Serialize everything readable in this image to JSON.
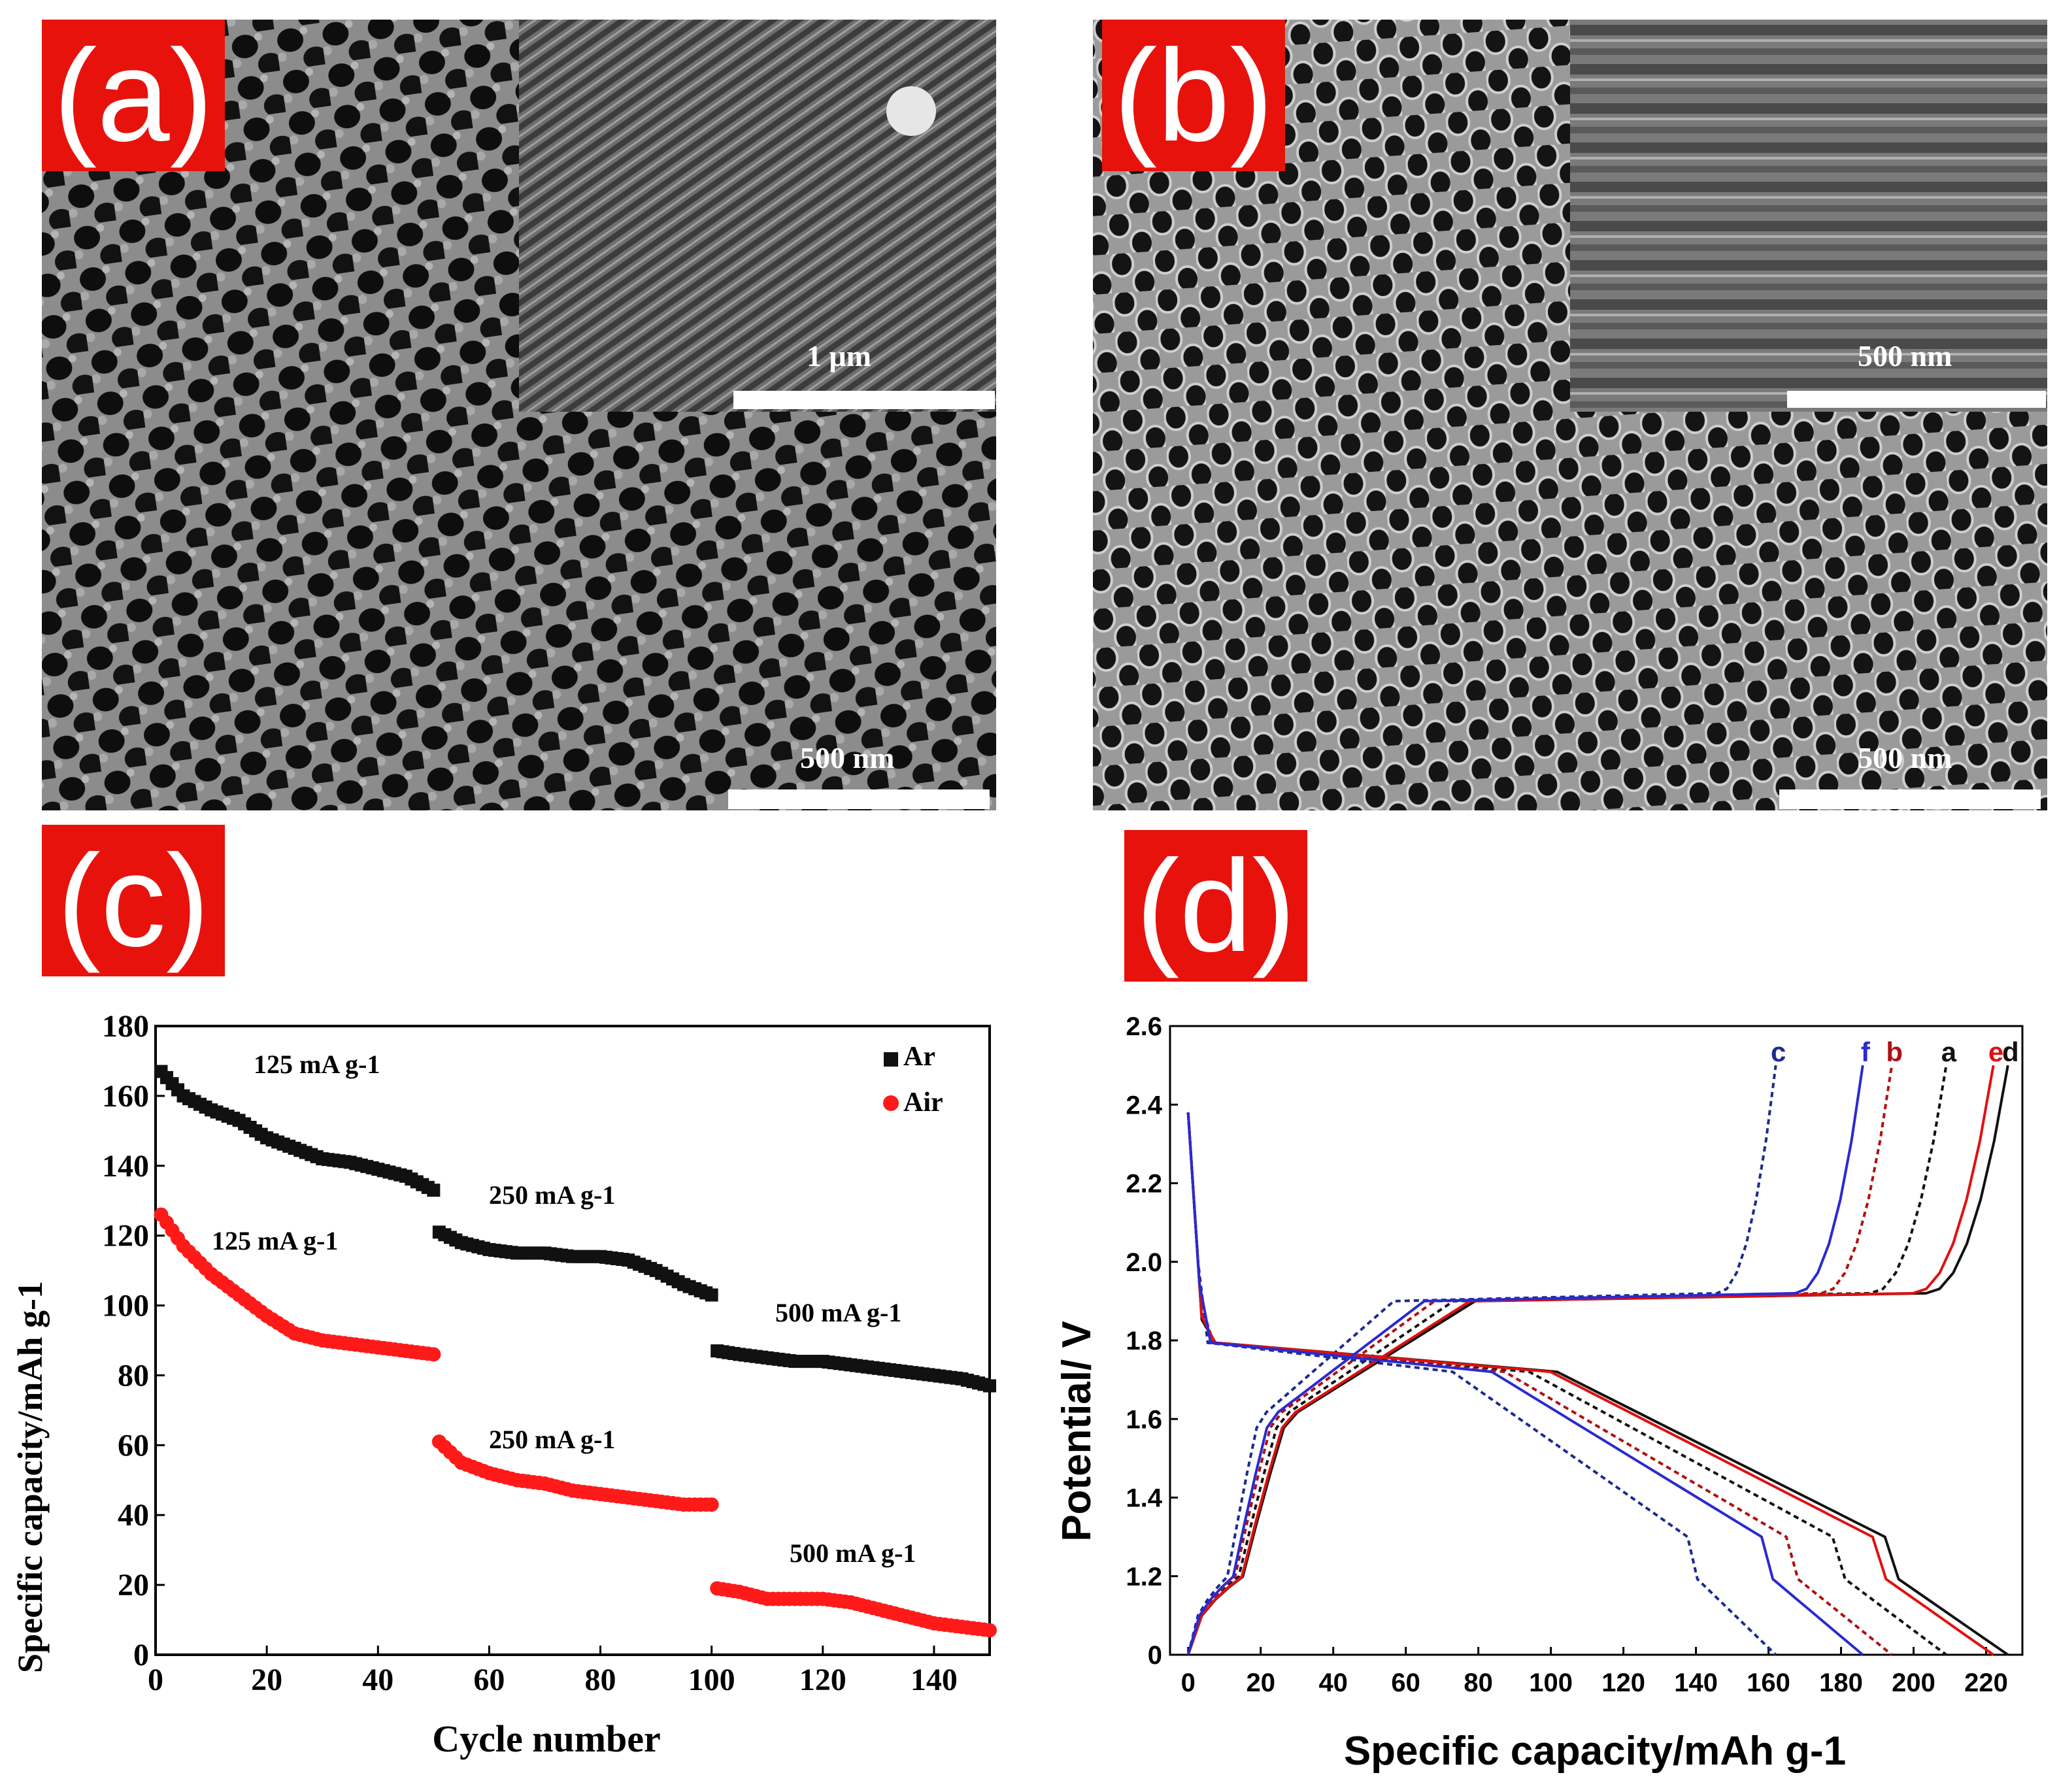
{
  "panels": {
    "a": {
      "label": "(a)",
      "scale_main": "500 nm",
      "scale_inset": "1 μm"
    },
    "b": {
      "label": "(b)",
      "scale_main": "500 nm",
      "scale_inset": "500 nm"
    },
    "c": {
      "label": "(c)"
    },
    "d": {
      "label": "(d)"
    }
  },
  "colors": {
    "tag_bg": "#e8120c",
    "tag_text": "#ffffff",
    "ar": "#111111",
    "air": "#ff1a1a",
    "curve_black": "#111111",
    "curve_red": "#e01010",
    "curve_blue": "#2a2ad0",
    "curve_darkred": "#b01010",
    "curve_navy": "#1c2a90"
  },
  "chart_data": [
    {
      "type": "scatter",
      "xlabel": "Cycle number",
      "ylabel": "Specific capacity/mAh g-1",
      "xlim": [
        0,
        150
      ],
      "ylim": [
        0,
        180
      ],
      "xticks": [
        "0",
        "20",
        "40",
        "60",
        "80",
        "100",
        "120",
        "140"
      ],
      "yticks": [
        "0",
        "20",
        "40",
        "60",
        "80",
        "100",
        "120",
        "140",
        "160",
        "180"
      ],
      "legend": {
        "placement": "top-right",
        "entries": [
          "Ar",
          "Air"
        ]
      },
      "annotations": [
        {
          "text": "125 mA g-1",
          "series": "Ar"
        },
        {
          "text": "250 mA g-1",
          "series": "Ar"
        },
        {
          "text": "500 mA g-1",
          "series": "Ar"
        },
        {
          "text": "125 mA g-1",
          "series": "Air"
        },
        {
          "text": "250 mA g-1",
          "series": "Air"
        },
        {
          "text": "500 mA g-1",
          "series": "Air"
        }
      ],
      "series": [
        {
          "name": "Ar",
          "marker": "square",
          "segments": [
            {
              "x": [
                1,
                5,
                10,
                15,
                20,
                25,
                30,
                35,
                40,
                45,
                50
              ],
              "y": [
                167,
                160,
                156,
                153,
                148,
                145,
                142,
                141,
                139,
                137,
                133
              ]
            },
            {
              "x": [
                51,
                55,
                60,
                65,
                70,
                75,
                80,
                85,
                90,
                95,
                100
              ],
              "y": [
                121,
                118,
                116,
                115,
                115,
                114,
                114,
                113,
                110,
                106,
                103
              ]
            },
            {
              "x": [
                101,
                105,
                110,
                115,
                120,
                125,
                130,
                135,
                140,
                145,
                150
              ],
              "y": [
                87,
                86,
                85,
                84,
                84,
                83,
                82,
                81,
                80,
                79,
                77
              ]
            }
          ]
        },
        {
          "name": "Air",
          "marker": "circle",
          "segments": [
            {
              "x": [
                1,
                5,
                10,
                15,
                20,
                25,
                30,
                35,
                40,
                45,
                50
              ],
              "y": [
                126,
                117,
                109,
                103,
                97,
                92,
                90,
                89,
                88,
                87,
                86
              ]
            },
            {
              "x": [
                51,
                55,
                60,
                65,
                70,
                75,
                80,
                85,
                90,
                95,
                100
              ],
              "y": [
                61,
                55,
                52,
                50,
                49,
                47,
                46,
                45,
                44,
                43,
                43
              ]
            },
            {
              "x": [
                101,
                105,
                110,
                115,
                120,
                125,
                130,
                135,
                140,
                145,
                150
              ],
              "y": [
                19,
                18,
                16,
                16,
                16,
                15,
                13,
                11,
                9,
                8,
                7
              ]
            }
          ]
        }
      ]
    },
    {
      "type": "line",
      "xlabel": "Specific capacity/mAh g-1",
      "ylabel": "Potential/ V",
      "xlim": [
        -5,
        230
      ],
      "ylim": [
        0,
        2.6
      ],
      "xticks": [
        "0",
        "20",
        "40",
        "60",
        "80",
        "100",
        "120",
        "140",
        "160",
        "180",
        "200",
        "220"
      ],
      "yticks": [
        "0",
        "1.2",
        "1.4",
        "1.6",
        "1.8",
        "2.0",
        "2.2",
        "2.4",
        "2.6"
      ],
      "curve_labels": [
        "c",
        "f",
        "b",
        "a",
        "e",
        "d"
      ],
      "series": [
        {
          "name": "a",
          "color": "curve_black",
          "dashed": true,
          "capacity": 209
        },
        {
          "name": "b",
          "color": "curve_darkred",
          "dashed": true,
          "capacity": 194
        },
        {
          "name": "c",
          "color": "curve_navy",
          "dashed": true,
          "capacity": 162
        },
        {
          "name": "d",
          "color": "curve_black",
          "dashed": false,
          "capacity": 226
        },
        {
          "name": "e",
          "color": "curve_red",
          "dashed": false,
          "capacity": 222
        },
        {
          "name": "f",
          "color": "curve_blue",
          "dashed": false,
          "capacity": 186
        }
      ]
    }
  ]
}
